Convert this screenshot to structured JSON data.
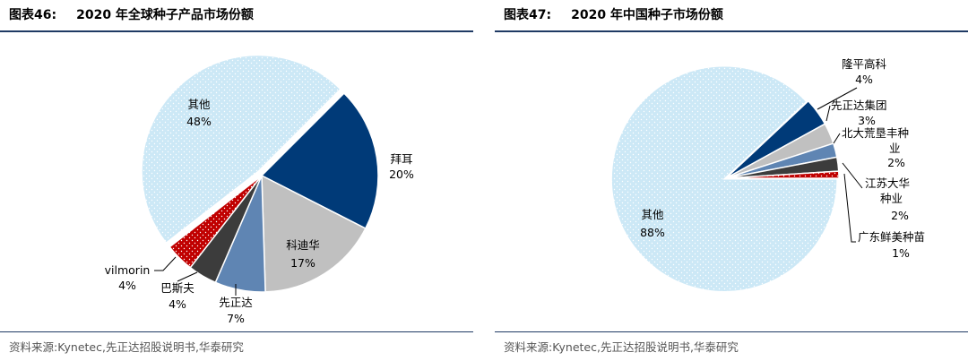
{
  "panels": [
    {
      "fig_label": "图表46:",
      "title": "2020 年全球种子产品市场份额",
      "source": "资料来源:Kynetec,先正达招股说明书,华泰研究"
    },
    {
      "fig_label": "图表47:",
      "title": "2020 年中国种子市场份额",
      "source": "资料来源:Kynetec,先正达招股说明书,华泰研究"
    }
  ],
  "colors": {
    "light_blue": "#cce8f6",
    "dark_navy": "#003a78",
    "gray": "#c0c0c0",
    "steel_blue": "#5f85b3",
    "dark_gray": "#3c3c3c",
    "red": "#c00000",
    "rule": "#1f3a64"
  },
  "chart_data": [
    {
      "type": "pie",
      "title": "2020 年全球种子产品市场份额",
      "slices": [
        {
          "label": "拜耳",
          "value": 20,
          "display": "20%",
          "color": "#003a78"
        },
        {
          "label": "科迪华",
          "value": 17,
          "display": "17%",
          "color": "#c0c0c0"
        },
        {
          "label": "先正达",
          "value": 7,
          "display": "7%",
          "color": "#5f85b3"
        },
        {
          "label": "巴斯夫",
          "value": 4,
          "display": "4%",
          "color": "#3c3c3c"
        },
        {
          "label": "vilmorin",
          "value": 4,
          "display": "4%",
          "color": "#c00000"
        },
        {
          "label": "其他",
          "value": 48,
          "display": "48%",
          "color": "#cce8f6"
        }
      ]
    },
    {
      "type": "pie",
      "title": "2020 年中国种子市场份额",
      "slices": [
        {
          "label": "隆平高科",
          "value": 4,
          "display": "4%",
          "color": "#003a78"
        },
        {
          "label": "先正达集团",
          "value": 3,
          "display": "3%",
          "color": "#c0c0c0"
        },
        {
          "label": "北大荒垦丰种业",
          "value": 2,
          "display": "2%",
          "color": "#5f85b3"
        },
        {
          "label": "江苏大华种业",
          "value": 2,
          "display": "2%",
          "color": "#3c3c3c"
        },
        {
          "label": "广东鲜美种苗",
          "value": 1,
          "display": "1%",
          "color": "#c00000"
        },
        {
          "label": "其他",
          "value": 88,
          "display": "88%",
          "color": "#cce8f6"
        }
      ]
    }
  ]
}
